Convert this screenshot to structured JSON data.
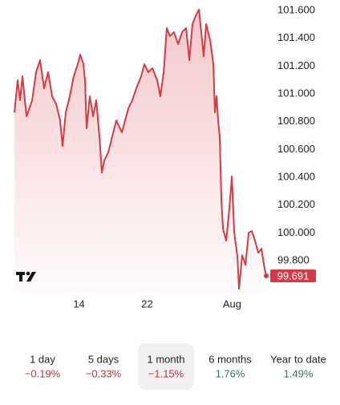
{
  "chart_data": {
    "type": "line",
    "x": [
      6.4,
      6.78,
      7.06,
      7.34,
      7.82,
      8.48,
      8.95,
      9.42,
      9.89,
      10.36,
      10.83,
      11.31,
      11.78,
      12.06,
      12.44,
      12.91,
      13.38,
      13.85,
      14.14,
      14.51,
      14.7,
      14.89,
      15.27,
      15.65,
      16.02,
      16.4,
      16.68,
      16.97,
      17.44,
      17.91,
      18.38,
      19.04,
      19.8,
      20.27,
      20.74,
      21.31,
      21.68,
      22.15,
      22.63,
      23.19,
      23.57,
      23.95,
      24.32,
      24.7,
      25.17,
      25.65,
      26.12,
      26.59,
      26.97,
      27.34,
      27.72,
      28.1,
      28.38,
      28.66,
      28.95,
      29.42,
      29.8,
      29.98,
      30.17,
      30.36,
      30.55,
      30.74,
      30.93,
      31.31,
      31.68,
      31.97,
      32.25,
      32.63,
      32.82,
      33.19,
      33.57,
      33.95,
      34.32,
      34.7,
      35.08,
      35.46,
      35.74,
      36.02
    ],
    "series": [
      {
        "color": "#d63a44",
        "values": [
          100.867,
          101.098,
          100.954,
          101.127,
          100.838,
          100.954,
          101.156,
          101.242,
          101.04,
          101.156,
          100.983,
          100.925,
          100.809,
          100.625,
          100.867,
          100.983,
          101.127,
          101.213,
          101.283,
          101.213,
          101.098,
          100.752,
          100.983,
          100.838,
          100.954,
          100.694,
          100.434,
          100.521,
          100.579,
          100.694,
          100.809,
          100.723,
          100.896,
          100.954,
          101.04,
          101.127,
          101.213,
          101.156,
          101.185,
          101.098,
          100.983,
          101.156,
          101.473,
          101.415,
          101.444,
          101.358,
          101.444,
          101.473,
          101.242,
          101.502,
          101.56,
          101.606,
          101.444,
          101.271,
          101.502,
          101.386,
          101.213,
          100.867,
          100.983,
          100.809,
          100.694,
          100.232,
          100.03,
          99.944,
          100.175,
          100.406,
          100.002,
          99.828,
          99.598,
          99.84,
          99.771,
          100.002,
          100.013,
          99.944,
          99.857,
          99.886,
          99.771,
          99.691
        ]
      }
    ],
    "xlim": [
      6.4,
      36.3
    ],
    "xticks": [
      14,
      22,
      {
        "value": 32,
        "label": "Aug"
      }
    ],
    "ylim": [
      99.57,
      101.675
    ],
    "yticks": [
      {
        "value": 99.8,
        "label": "99.800"
      },
      {
        "value": 100.0,
        "label": "100.000"
      },
      {
        "value": 100.2,
        "label": "100.200"
      },
      {
        "value": 100.4,
        "label": "100.400"
      },
      {
        "value": 100.6,
        "label": "100.600"
      },
      {
        "value": 100.8,
        "label": "100.800"
      },
      {
        "value": 101.0,
        "label": "101.000"
      },
      {
        "value": 101.2,
        "label": "101.200"
      },
      {
        "value": 101.4,
        "label": "101.400"
      },
      {
        "value": 101.6,
        "label": "101.600"
      }
    ]
  },
  "tabs": [
    {
      "label": "1 day",
      "change": "−0.19%",
      "trend": "down",
      "selected": false
    },
    {
      "label": "5 days",
      "change": "−0.33%",
      "trend": "down",
      "selected": false
    },
    {
      "label": "1 month",
      "change": "−1.15%",
      "trend": "down",
      "selected": true
    },
    {
      "label": "6 months",
      "change": "1.76%",
      "trend": "up",
      "selected": false
    },
    {
      "label": "Year to date",
      "change": "1.49%",
      "trend": "up",
      "selected": false
    }
  ]
}
